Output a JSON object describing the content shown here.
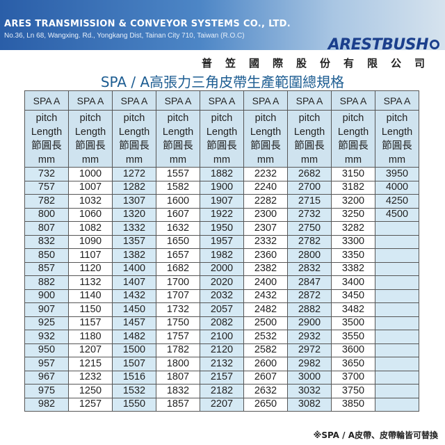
{
  "header": {
    "company_en": "ARES TRANSMISSION & CONVEYOR SYSTEMS CO., LTD.",
    "address": "No.36, Ln 68, Wangxing. Rd., Yongkang Dist, Tainan City 710, Taiwan (R.O.C)",
    "logo_text": "ARESTBUSH",
    "company_zh": "普笠國際股份有限公司"
  },
  "title": "SPA / A高張力三角皮帶生產範圍總規格",
  "table": {
    "col_header_top": "SPA  A",
    "col_header_sub": [
      "pitch",
      "Length",
      "節圓長",
      "mm"
    ],
    "columns": [
      [
        "732",
        "757",
        "782",
        "800",
        "807",
        "832",
        "850",
        "857",
        "882",
        "900",
        "907",
        "925",
        "932",
        "950",
        "957",
        "967",
        "975",
        "982"
      ],
      [
        "1000",
        "1007",
        "1032",
        "1060",
        "1082",
        "1090",
        "1107",
        "1120",
        "1132",
        "1140",
        "1150",
        "1157",
        "1180",
        "1207",
        "1215",
        "1232",
        "1250",
        "1257"
      ],
      [
        "1272",
        "1282",
        "1307",
        "1320",
        "1332",
        "1357",
        "1382",
        "1400",
        "1407",
        "1432",
        "1450",
        "1457",
        "1482",
        "1500",
        "1507",
        "1516",
        "1532",
        "1550"
      ],
      [
        "1557",
        "1582",
        "1600",
        "1607",
        "1632",
        "1650",
        "1657",
        "1682",
        "1700",
        "1707",
        "1732",
        "1750",
        "1757",
        "1782",
        "1800",
        "1807",
        "1832",
        "1857"
      ],
      [
        "1882",
        "1900",
        "1907",
        "1922",
        "1950",
        "1957",
        "1982",
        "2000",
        "2020",
        "2032",
        "2057",
        "2082",
        "2100",
        "2120",
        "2132",
        "2157",
        "2182",
        "2207"
      ],
      [
        "2232",
        "2240",
        "2282",
        "2300",
        "2307",
        "2332",
        "2360",
        "2382",
        "2400",
        "2432",
        "2482",
        "2500",
        "2532",
        "2582",
        "2600",
        "2607",
        "2632",
        "2650"
      ],
      [
        "2682",
        "2700",
        "2715",
        "2732",
        "2750",
        "2782",
        "2800",
        "2832",
        "2847",
        "2872",
        "2882",
        "2900",
        "2932",
        "2972",
        "2982",
        "3000",
        "3032",
        "3082"
      ],
      [
        "3150",
        "3182",
        "3200",
        "3250",
        "3282",
        "3300",
        "3350",
        "3382",
        "3400",
        "3450",
        "3482",
        "3500",
        "3550",
        "3600",
        "3650",
        "3700",
        "3750",
        "3850"
      ],
      [
        "3950",
        "4000",
        "4250",
        "4500",
        "",
        "",
        "",
        "",
        "",
        "",
        "",
        "",
        "",
        "",
        "",
        "",
        "",
        ""
      ]
    ]
  },
  "footnote": "※SPA / A皮帶、皮帶輪皆可替換",
  "colors": {
    "accent": "#1d5d92",
    "cell_blue": "#d5e9f4",
    "header_blue": "#cfe3ef"
  }
}
